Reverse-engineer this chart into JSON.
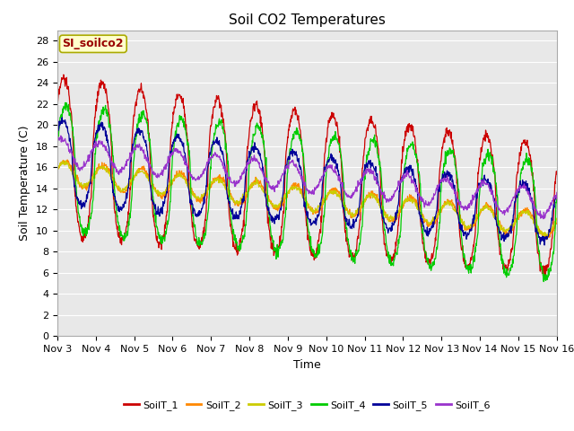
{
  "title": "Soil CO2 Temperatures",
  "xlabel": "Time",
  "ylabel": "Soil Temperature (C)",
  "ylim": [
    0,
    29
  ],
  "yticks": [
    0,
    2,
    4,
    6,
    8,
    10,
    12,
    14,
    16,
    18,
    20,
    22,
    24,
    26,
    28
  ],
  "x_labels": [
    "Nov 3",
    "Nov 4",
    "Nov 5",
    "Nov 6",
    "Nov 7",
    "Nov 8",
    "Nov 9",
    "Nov 10",
    "Nov 11",
    "Nov 12",
    "Nov 13",
    "Nov 14",
    "Nov 15",
    "Nov 16"
  ],
  "legend_labels": [
    "SoilT_1",
    "SoilT_2",
    "SoilT_3",
    "SoilT_4",
    "SoilT_5",
    "SoilT_6"
  ],
  "line_colors": [
    "#cc0000",
    "#ff8800",
    "#cccc00",
    "#00cc00",
    "#000099",
    "#9933cc"
  ],
  "annotation_text": "SI_soilco2",
  "annotation_bg": "#ffffcc",
  "annotation_border": "#aaaa00",
  "title_fontsize": 11,
  "axis_label_fontsize": 9,
  "tick_fontsize": 8,
  "legend_fontsize": 8
}
